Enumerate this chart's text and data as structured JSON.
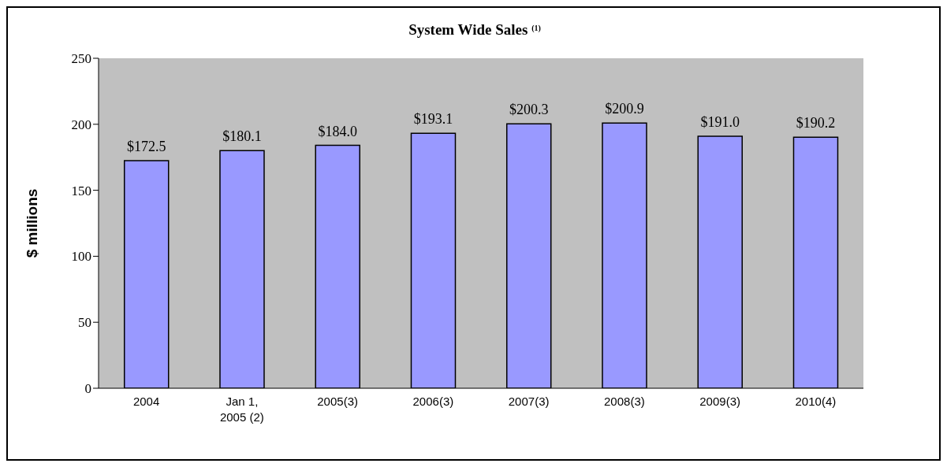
{
  "chart_data": {
    "type": "bar",
    "title": "System Wide Sales $^{(1)}$",
    "ylabel": "$ millions",
    "categories": [
      "2004",
      "Jan 1, 2005 (2)",
      "2005(3)",
      "2006(3)",
      "2007(3)",
      "2008(3)",
      "2009(3)",
      "2010(4)"
    ],
    "values": [
      172.5,
      180.1,
      184.0,
      193.1,
      200.3,
      200.9,
      191.0,
      190.2
    ],
    "value_labels": [
      "$172.5",
      "$180.1",
      "$184.0",
      "$193.1",
      "$200.3",
      "$200.9",
      "$191.0",
      "$190.2"
    ],
    "color": "#9999ff",
    "ylim": [
      0,
      250
    ],
    "yticks": [
      0,
      50,
      100,
      150,
      200,
      250
    ],
    "grid": false
  }
}
